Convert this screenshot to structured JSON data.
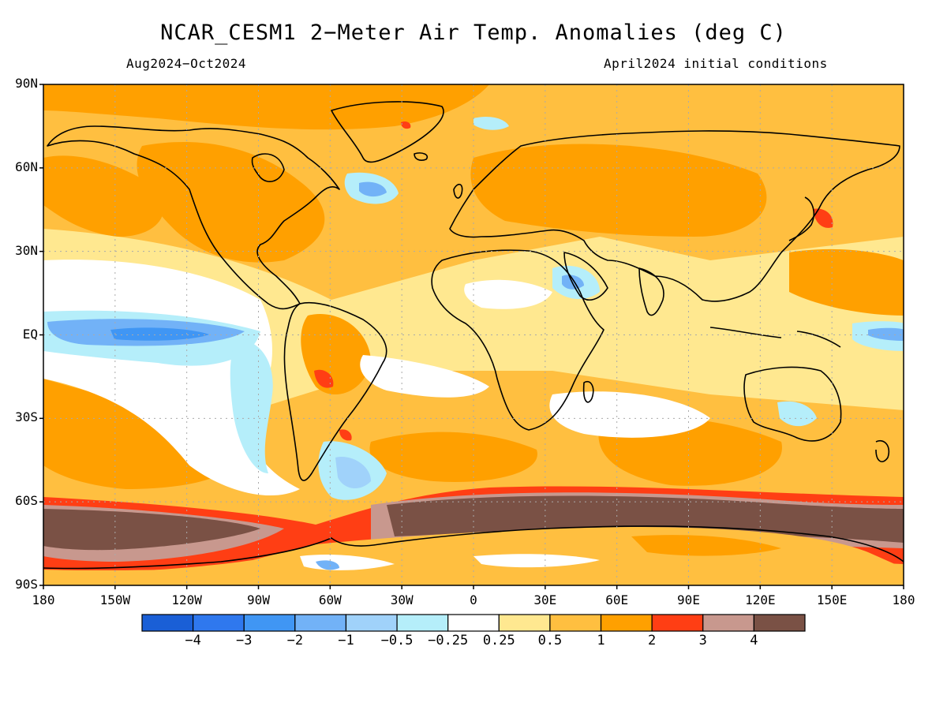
{
  "title": "NCAR_CESM1 2−Meter Air Temp. Anomalies (deg C)",
  "subtitle_left": "Aug2024−Oct2024",
  "subtitle_right": "April2024 initial conditions",
  "lat_labels": [
    "90N",
    "60N",
    "30N",
    "EQ",
    "30S",
    "60S",
    "90S"
  ],
  "lon_labels": [
    "180",
    "150W",
    "120W",
    "90W",
    "60W",
    "30W",
    "0",
    "30E",
    "60E",
    "90E",
    "120E",
    "150E",
    "180"
  ],
  "colorbar": {
    "colors": [
      "#1a5fd6",
      "#2f78ee",
      "#4096f4",
      "#72b2f7",
      "#a0d2fa",
      "#b5eefa",
      "#ffffff",
      "#ffe890",
      "#ffbf40",
      "#ffa000",
      "#ff3e14",
      "#c8988e",
      "#7a5145"
    ],
    "labels": [
      "−4",
      "−3",
      "−2",
      "−1",
      "−0.5",
      "−0.25",
      "0.25",
      "0.5",
      "1",
      "2",
      "3",
      "4"
    ]
  }
}
